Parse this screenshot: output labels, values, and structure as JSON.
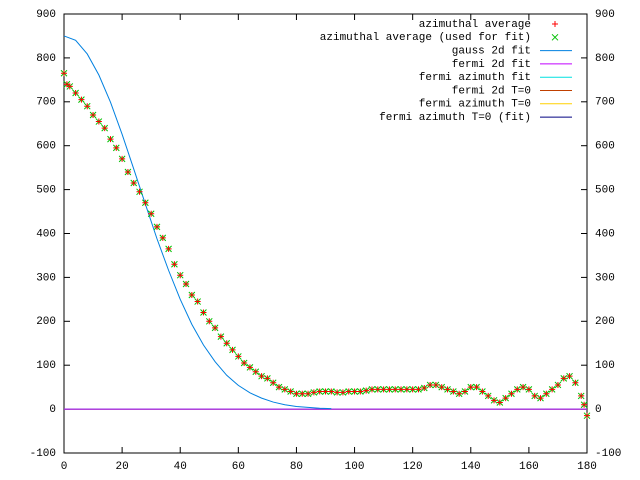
{
  "chart_data": {
    "type": "line",
    "xlim": [
      0,
      180
    ],
    "xticks": [
      0,
      20,
      40,
      60,
      80,
      100,
      120,
      140,
      160,
      180
    ],
    "ylim": [
      -100,
      900
    ],
    "yticks": [
      -100,
      0,
      100,
      200,
      300,
      400,
      500,
      600,
      700,
      800,
      900
    ],
    "y2lim": [
      -100,
      900
    ],
    "y2ticks": [
      -100,
      0,
      100,
      200,
      300,
      400,
      500,
      600,
      700,
      800,
      900
    ],
    "legend": "top-right",
    "series": [
      {
        "name": "azimuthal average",
        "color": "#ff0000",
        "mode": "points",
        "marker": "+",
        "x": [
          0,
          1,
          2,
          4,
          6,
          8,
          10,
          12,
          14,
          16,
          18,
          20,
          22,
          24,
          26,
          28,
          30,
          32,
          34,
          36,
          38,
          40,
          42,
          44,
          46,
          48,
          50,
          52,
          54,
          56,
          58,
          60,
          62,
          64,
          66,
          68,
          70,
          72,
          74,
          76,
          78,
          80,
          82,
          84,
          86,
          88,
          90,
          92,
          94,
          96,
          98,
          100,
          102,
          104,
          106,
          108,
          110,
          112,
          114,
          116,
          118,
          120,
          122,
          124,
          126,
          128,
          130,
          132,
          134,
          136,
          138,
          140,
          142,
          144,
          146,
          148,
          150,
          152,
          154,
          156,
          158,
          160,
          162,
          164,
          166,
          168,
          170,
          172,
          174,
          176,
          178,
          179,
          180
        ],
        "values": [
          765,
          740,
          735,
          720,
          705,
          690,
          670,
          655,
          640,
          615,
          595,
          570,
          540,
          515,
          495,
          470,
          445,
          415,
          390,
          365,
          330,
          305,
          285,
          260,
          245,
          220,
          200,
          185,
          165,
          150,
          135,
          120,
          105,
          95,
          85,
          75,
          70,
          60,
          50,
          45,
          40,
          35,
          35,
          35,
          38,
          40,
          40,
          40,
          38,
          38,
          40,
          40,
          40,
          42,
          45,
          45,
          45,
          45,
          45,
          45,
          45,
          45,
          45,
          48,
          55,
          55,
          50,
          45,
          40,
          35,
          40,
          50,
          50,
          40,
          30,
          20,
          15,
          25,
          35,
          45,
          50,
          45,
          30,
          25,
          35,
          45,
          55,
          70,
          75,
          60,
          30,
          10,
          -15
        ]
      },
      {
        "name": "azimuthal average (used for fit)",
        "color": "#00c000",
        "mode": "points",
        "marker": "x",
        "x": [
          0,
          1,
          2,
          4,
          6,
          8,
          10,
          12,
          14,
          16,
          18,
          20,
          22,
          24,
          26,
          28,
          30,
          32,
          34,
          36,
          38,
          40,
          42,
          44,
          46,
          48,
          50,
          52,
          54,
          56,
          58,
          60,
          62,
          64,
          66,
          68,
          70,
          72,
          74,
          76,
          78,
          80,
          82,
          84,
          86,
          88,
          90,
          92,
          94,
          96,
          98,
          100,
          102,
          104,
          106,
          108,
          110,
          112,
          114,
          116,
          118,
          120,
          122,
          124,
          126,
          128,
          130,
          132,
          134,
          136,
          138,
          140,
          142,
          144,
          146,
          148,
          150,
          152,
          154,
          156,
          158,
          160,
          162,
          164,
          166,
          168,
          170,
          172,
          174,
          176,
          178,
          179,
          180
        ],
        "values": [
          765,
          740,
          735,
          720,
          705,
          690,
          670,
          655,
          640,
          615,
          595,
          570,
          540,
          515,
          495,
          470,
          445,
          415,
          390,
          365,
          330,
          305,
          285,
          260,
          245,
          220,
          200,
          185,
          165,
          150,
          135,
          120,
          105,
          95,
          85,
          75,
          70,
          60,
          50,
          45,
          40,
          35,
          35,
          35,
          38,
          40,
          40,
          40,
          38,
          38,
          40,
          40,
          40,
          42,
          45,
          45,
          45,
          45,
          45,
          45,
          45,
          45,
          45,
          48,
          55,
          55,
          50,
          45,
          40,
          35,
          40,
          50,
          50,
          40,
          30,
          20,
          15,
          25,
          35,
          45,
          50,
          45,
          30,
          25,
          35,
          45,
          55,
          70,
          75,
          60,
          30,
          10,
          -15
        ]
      },
      {
        "name": "gauss 2d fit",
        "color": "#0080e0",
        "mode": "lines",
        "x": [
          0,
          4,
          8,
          12,
          16,
          20,
          24,
          28,
          32,
          36,
          40,
          44,
          48,
          52,
          56,
          60,
          64,
          68,
          72,
          76,
          80,
          84,
          88,
          92
        ],
        "values": [
          850,
          840,
          809,
          761,
          699,
          626,
          547,
          467,
          388,
          316,
          250,
          193,
          146,
          108,
          77,
          54,
          37,
          25,
          16,
          10,
          6,
          4,
          2,
          1
        ]
      },
      {
        "name": "fermi 2d fit",
        "color": "#c000ff",
        "mode": "lines",
        "x": [
          0,
          180
        ],
        "values": [
          0,
          0
        ]
      },
      {
        "name": "fermi azimuth fit",
        "color": "#00e0e0",
        "mode": "lines",
        "x": [
          0,
          180
        ],
        "values": [
          0,
          0
        ]
      },
      {
        "name": "fermi 2d T=0",
        "color": "#c04000",
        "mode": "lines",
        "x": [
          0,
          180
        ],
        "values": [
          0,
          0
        ]
      },
      {
        "name": "fermi azimuth T=0",
        "color": "#ffd000",
        "mode": "lines",
        "x": [
          0,
          180
        ],
        "values": [
          0,
          0
        ]
      },
      {
        "name": "fermi azimuth T=0 (fit)",
        "color": "#000080",
        "mode": "lines",
        "x": [
          0,
          180
        ],
        "values": [
          0,
          0
        ]
      }
    ]
  }
}
